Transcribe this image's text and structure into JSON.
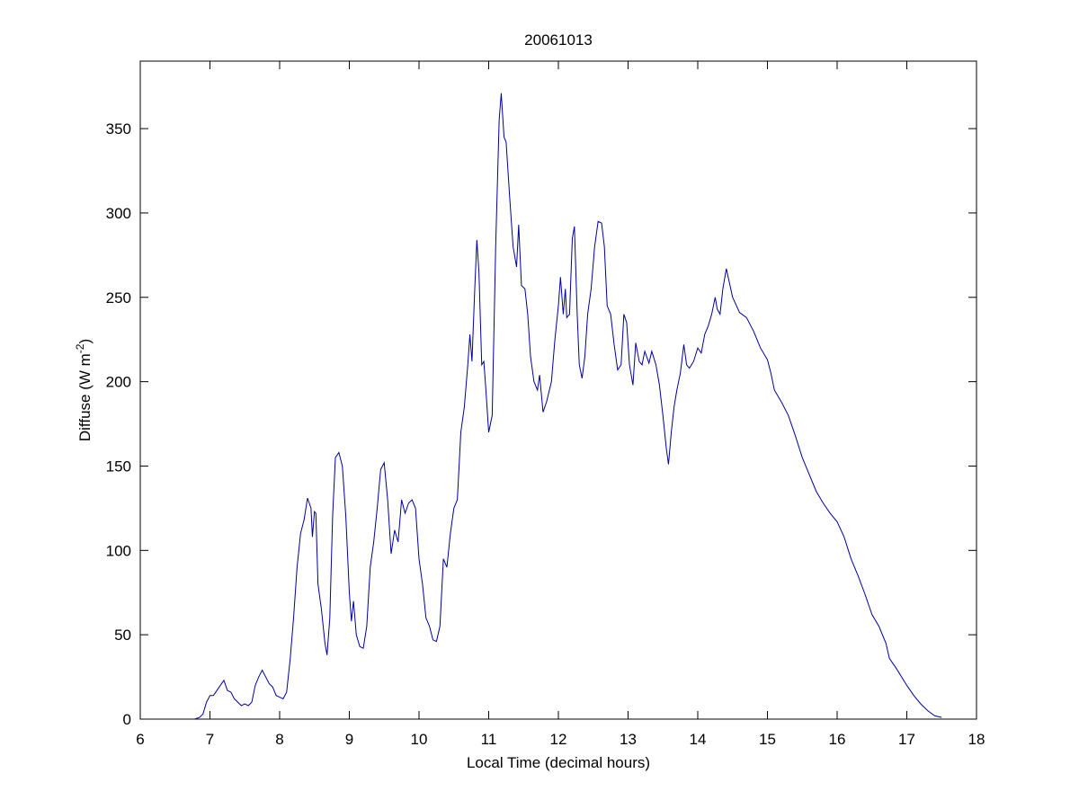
{
  "chart_data": {
    "type": "line",
    "title": "20061013",
    "xlabel": "Local Time (decimal hours)",
    "ylabel": {
      "text": "Diffuse (W m",
      "sup": "-2",
      "end": ")"
    },
    "xlim": [
      6,
      18
    ],
    "ylim": [
      0,
      390
    ],
    "xticks": [
      6,
      7,
      8,
      9,
      10,
      11,
      12,
      13,
      14,
      15,
      16,
      17,
      18
    ],
    "yticks": [
      0,
      50,
      100,
      150,
      200,
      250,
      300,
      350
    ],
    "series": [
      {
        "color": "#0000a0",
        "x": [
          6.78,
          6.85,
          6.9,
          6.95,
          7.0,
          7.05,
          7.1,
          7.15,
          7.2,
          7.25,
          7.3,
          7.35,
          7.4,
          7.45,
          7.5,
          7.55,
          7.6,
          7.65,
          7.7,
          7.75,
          7.8,
          7.85,
          7.9,
          7.95,
          8.0,
          8.05,
          8.1,
          8.15,
          8.2,
          8.25,
          8.3,
          8.35,
          8.4,
          8.45,
          8.47,
          8.5,
          8.52,
          8.55,
          8.6,
          8.65,
          8.68,
          8.72,
          8.76,
          8.8,
          8.85,
          8.9,
          8.95,
          9.0,
          9.03,
          9.06,
          9.1,
          9.15,
          9.2,
          9.25,
          9.3,
          9.35,
          9.4,
          9.45,
          9.5,
          9.55,
          9.6,
          9.65,
          9.7,
          9.75,
          9.8,
          9.85,
          9.9,
          9.95,
          10.0,
          10.05,
          10.1,
          10.15,
          10.2,
          10.25,
          10.3,
          10.35,
          10.4,
          10.45,
          10.5,
          10.55,
          10.6,
          10.65,
          10.7,
          10.73,
          10.76,
          10.8,
          10.83,
          10.86,
          10.9,
          10.93,
          10.96,
          11.0,
          11.05,
          11.1,
          11.15,
          11.18,
          11.22,
          11.25,
          11.3,
          11.35,
          11.4,
          11.43,
          11.47,
          11.52,
          11.56,
          11.6,
          11.65,
          11.7,
          11.73,
          11.78,
          11.83,
          11.9,
          11.95,
          12.0,
          12.03,
          12.07,
          12.1,
          12.12,
          12.16,
          12.2,
          12.23,
          12.27,
          12.3,
          12.34,
          12.38,
          12.42,
          12.47,
          12.52,
          12.57,
          12.62,
          12.66,
          12.7,
          12.75,
          12.8,
          12.85,
          12.9,
          12.94,
          12.98,
          13.02,
          13.07,
          13.11,
          13.16,
          13.2,
          13.24,
          13.3,
          13.34,
          13.4,
          13.45,
          13.5,
          13.55,
          13.58,
          13.62,
          13.66,
          13.7,
          13.75,
          13.8,
          13.84,
          13.88,
          13.94,
          14.0,
          14.05,
          14.1,
          14.15,
          14.2,
          14.25,
          14.28,
          14.32,
          14.36,
          14.41,
          14.5,
          14.6,
          14.7,
          14.8,
          14.9,
          15.0,
          15.05,
          15.1,
          15.2,
          15.3,
          15.4,
          15.5,
          15.6,
          15.7,
          15.8,
          15.9,
          16.0,
          16.1,
          16.2,
          16.3,
          16.4,
          16.5,
          16.6,
          16.7,
          16.75,
          16.85,
          17.0,
          17.1,
          17.2,
          17.3,
          17.4,
          17.5
        ],
        "values": [
          0,
          1,
          3,
          10,
          14,
          14,
          17,
          20,
          23,
          17,
          16,
          12,
          10,
          8,
          9,
          8,
          10,
          20,
          25,
          29,
          25,
          21,
          19,
          14,
          13,
          12,
          16,
          35,
          60,
          90,
          110,
          118,
          131,
          125,
          108,
          123,
          122,
          80,
          65,
          45,
          38,
          60,
          120,
          155,
          158,
          150,
          120,
          75,
          58,
          70,
          50,
          43,
          42,
          55,
          90,
          105,
          125,
          148,
          152,
          130,
          98,
          112,
          105,
          130,
          122,
          128,
          130,
          125,
          95,
          80,
          60,
          55,
          47,
          46,
          55,
          95,
          90,
          110,
          125,
          130,
          170,
          185,
          210,
          228,
          212,
          255,
          284,
          265,
          210,
          212,
          195,
          170,
          180,
          280,
          355,
          371,
          345,
          342,
          310,
          280,
          268,
          293,
          257,
          255,
          240,
          215,
          200,
          195,
          204,
          182,
          188,
          200,
          225,
          245,
          262,
          240,
          255,
          238,
          240,
          285,
          292,
          240,
          210,
          202,
          215,
          240,
          255,
          280,
          295,
          294,
          280,
          245,
          240,
          222,
          207,
          210,
          240,
          235,
          210,
          198,
          223,
          212,
          210,
          218,
          211,
          218,
          210,
          198,
          180,
          160,
          151,
          170,
          185,
          195,
          205,
          222,
          210,
          208,
          212,
          220,
          217,
          228,
          233,
          240,
          250,
          243,
          240,
          255,
          267,
          250,
          241,
          238,
          230,
          220,
          213,
          205,
          195,
          188,
          180,
          168,
          155,
          145,
          135,
          128,
          122,
          117,
          108,
          95,
          85,
          74,
          62,
          55,
          45,
          36,
          30,
          20,
          14,
          9,
          5,
          2,
          1
        ]
      }
    ]
  }
}
